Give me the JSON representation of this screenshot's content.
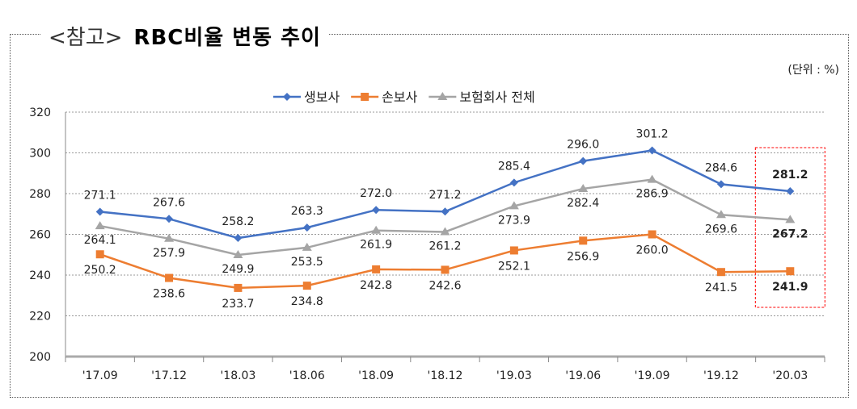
{
  "title_prefix": "<참고>",
  "title_main": "RBC비율 변동 추이",
  "unit": "(단위 : %)",
  "chart_data": {
    "type": "line",
    "title": "RBC비율 변동 추이",
    "xlabel": "",
    "ylabel": "",
    "categories": [
      "'17.09",
      "'17.12",
      "'18.03",
      "'18.06",
      "'18.09",
      "'18.12",
      "'19.03",
      "'19.06",
      "'19.09",
      "'19.12",
      "'20.03"
    ],
    "ylim": [
      200,
      320
    ],
    "yticks": [
      200,
      220,
      240,
      260,
      280,
      300,
      320
    ],
    "grid": true,
    "legend": "top-center",
    "highlight_category": "'20.03",
    "series": [
      {
        "name": "생보사",
        "color": "#4472C4",
        "marker": "diamond",
        "values": [
          271.1,
          267.6,
          258.2,
          263.3,
          272.0,
          271.2,
          285.4,
          296.0,
          301.2,
          284.6,
          281.2
        ]
      },
      {
        "name": "손보사",
        "color": "#ED7D31",
        "marker": "square",
        "values": [
          250.2,
          238.6,
          233.7,
          234.8,
          242.8,
          242.6,
          252.1,
          256.9,
          260.0,
          241.5,
          241.9
        ]
      },
      {
        "name": "보험회사 전체",
        "color": "#A5A5A5",
        "marker": "triangle",
        "values": [
          264.1,
          257.9,
          249.9,
          253.5,
          261.9,
          261.2,
          273.9,
          282.4,
          286.9,
          269.6,
          267.2
        ]
      }
    ]
  }
}
